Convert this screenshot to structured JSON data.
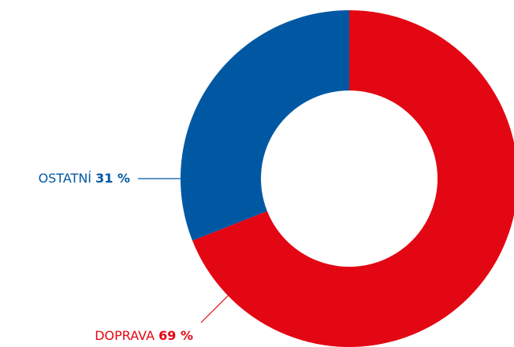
{
  "chart_data": {
    "type": "pie",
    "categories": [
      "DOPRAVA",
      "OSTATNÍ"
    ],
    "values": [
      69,
      31
    ],
    "value_labels": [
      "69 %",
      "31 %"
    ],
    "colors": [
      "#e30613",
      "#0058a3"
    ]
  }
}
